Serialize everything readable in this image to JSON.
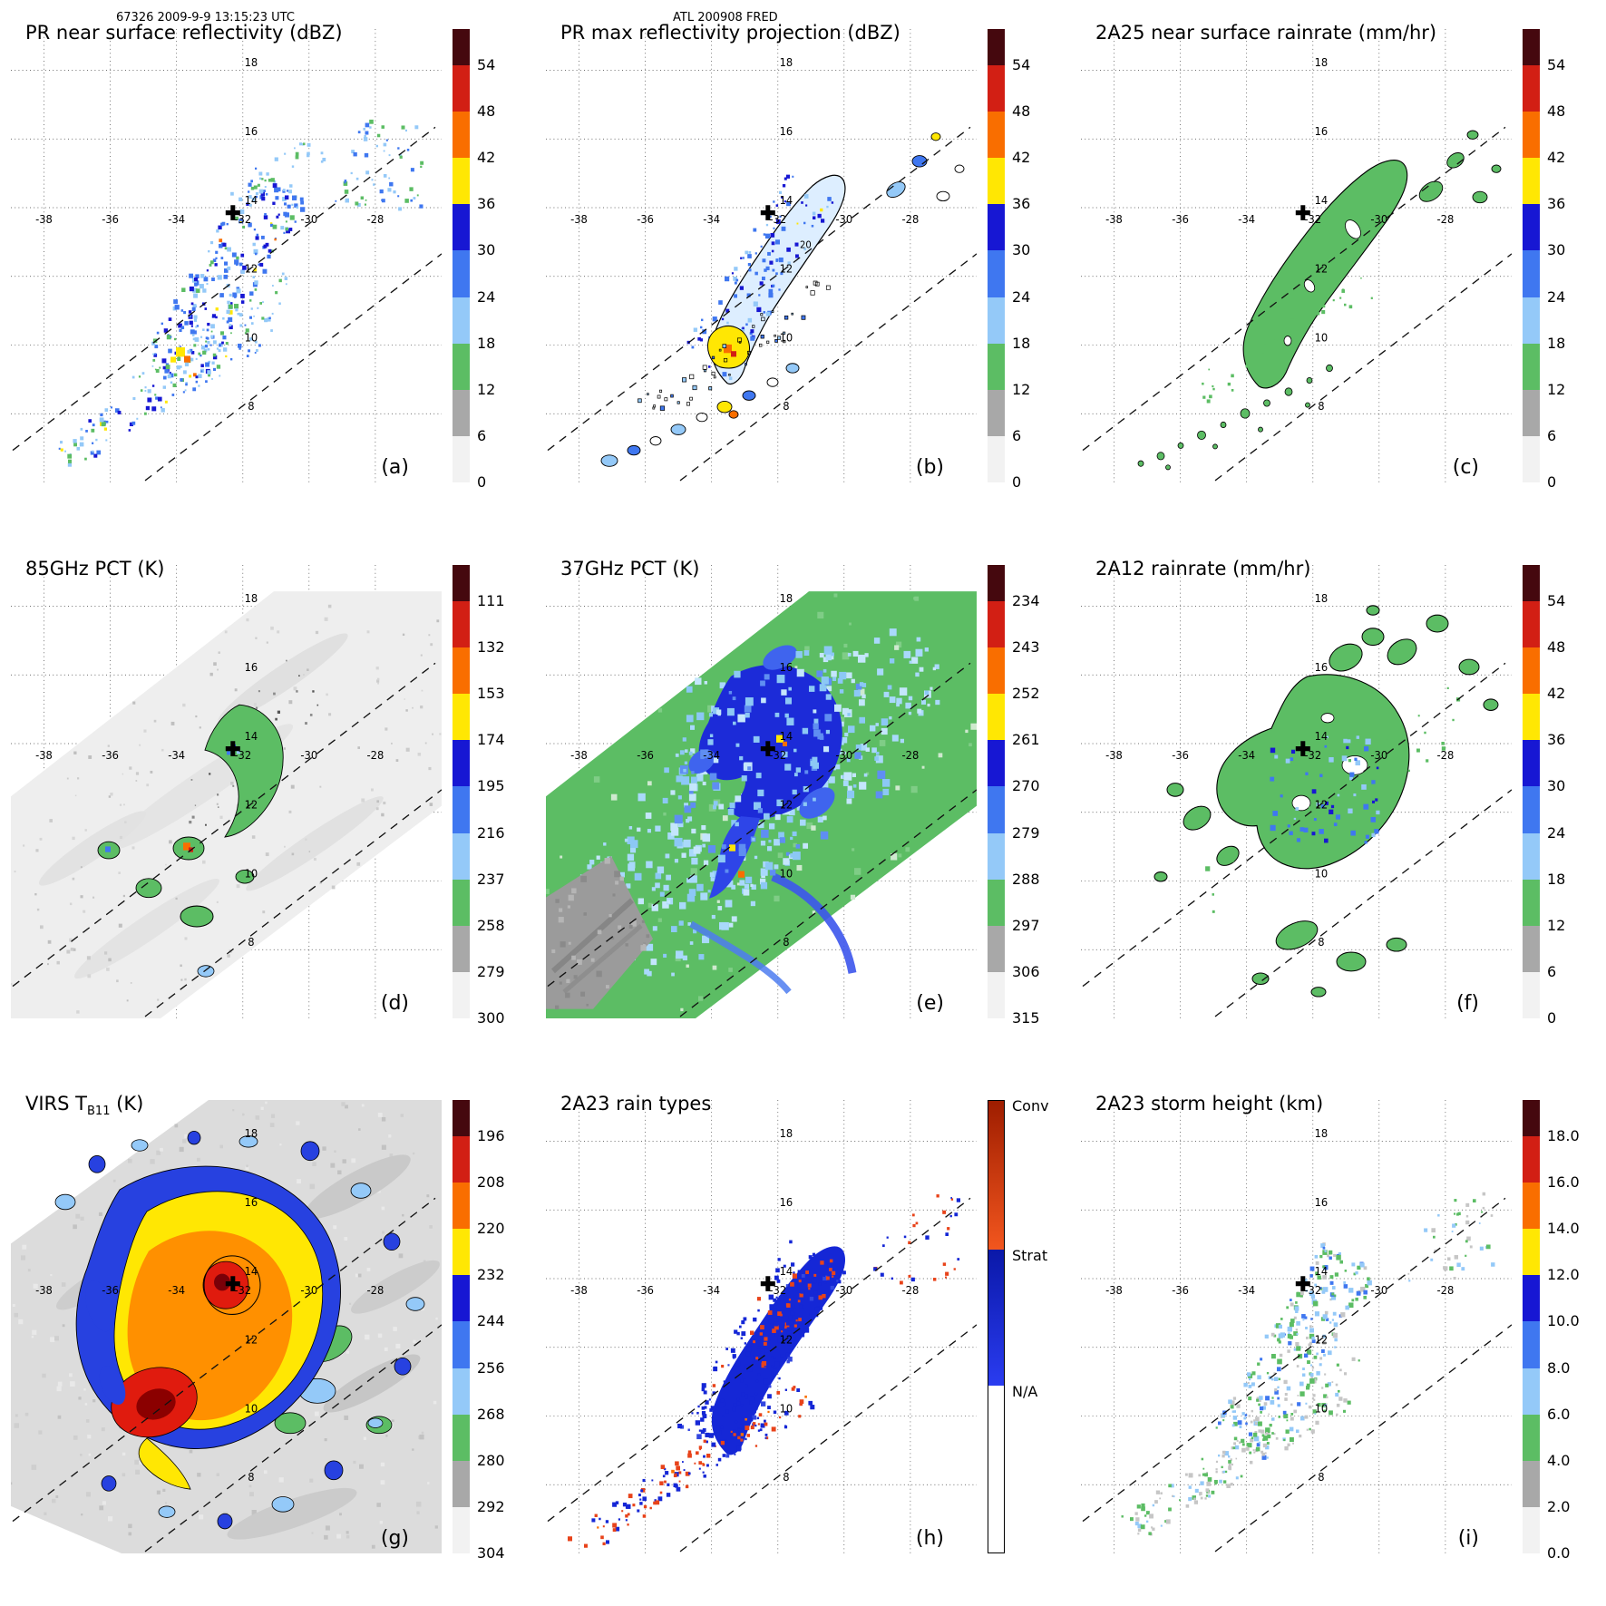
{
  "header": {
    "left": "67326 2009-9-9 13:15:23 UTC",
    "center": "ATL 200908 FRED"
  },
  "axes": {
    "lon_ticks": [
      "-38",
      "-36",
      "-34",
      "-32",
      "-30",
      "-28"
    ],
    "lat_ticks": [
      "8",
      "10",
      "12",
      "14",
      "16",
      "18"
    ],
    "lon_range": [
      -39,
      -26
    ],
    "lat_range": [
      6,
      19.2
    ],
    "lat_label_lon": -31.75,
    "lon_label_lat": 13.55,
    "storm_center": {
      "lon": -32.3,
      "lat": 13.85
    }
  },
  "palettes": {
    "value_bar": [
      "#45080e",
      "#d21f14",
      "#f96e00",
      "#ffe703",
      "#1717d3",
      "#3f77f0",
      "#94c9f8",
      "#5cbd64",
      "#a8a8a8",
      "#f2f2f2"
    ]
  },
  "chart_data": {
    "type": "heatmap",
    "description": "3x3 multi-sensor TRMM overpass maps of tropical cyclone FRED (ATL 200908), orbit 67326 at 2009-9-9 13:15:23 UTC. Each panel: lon -38 to -28, lat 8 to 18, dotted 2-degree graticule, dashed PR swath edge lines, bold plus at storm center near (-32.3, 13.9).",
    "panels": [
      {
        "letter": "(a)",
        "title": "PR near surface reflectivity (dBZ)",
        "units": "dBZ",
        "colorbar": {
          "type": "ticks",
          "ticks": [
            "54",
            "48",
            "42",
            "36",
            "30",
            "24",
            "18",
            "12",
            "6",
            "0"
          ]
        }
      },
      {
        "letter": "(b)",
        "title": "PR max reflectivity projection (dBZ)",
        "units": "dBZ",
        "contour_label": "20",
        "colorbar": {
          "type": "ticks",
          "ticks": [
            "54",
            "48",
            "42",
            "36",
            "30",
            "24",
            "18",
            "12",
            "6",
            "0"
          ]
        }
      },
      {
        "letter": "(c)",
        "title": "2A25 near surface rainrate (mm/hr)",
        "units": "mm/hr",
        "colorbar": {
          "type": "ticks",
          "ticks": [
            "54",
            "48",
            "42",
            "36",
            "30",
            "24",
            "18",
            "12",
            "6",
            "0"
          ]
        }
      },
      {
        "letter": "(d)",
        "title": "85GHz PCT (K)",
        "units": "K",
        "colorbar": {
          "type": "ticks",
          "ticks": [
            "111",
            "132",
            "153",
            "174",
            "195",
            "216",
            "237",
            "258",
            "279",
            "300"
          ]
        }
      },
      {
        "letter": "(e)",
        "title": "37GHz PCT (K)",
        "units": "K",
        "colorbar": {
          "type": "ticks",
          "ticks": [
            "234",
            "243",
            "252",
            "261",
            "270",
            "279",
            "288",
            "297",
            "306",
            "315"
          ]
        }
      },
      {
        "letter": "(f)",
        "title": "2A12 rainrate (mm/hr)",
        "units": "mm/hr",
        "colorbar": {
          "type": "ticks",
          "ticks": [
            "54",
            "48",
            "42",
            "36",
            "30",
            "24",
            "18",
            "12",
            "6",
            "0"
          ]
        }
      },
      {
        "letter": "(g)",
        "title_main": "VIRS T",
        "title_sub": "B11",
        "title_end": " (K)",
        "units": "K",
        "colorbar": {
          "type": "ticks",
          "ticks": [
            "196",
            "208",
            "220",
            "232",
            "244",
            "256",
            "268",
            "280",
            "292",
            "304"
          ]
        }
      },
      {
        "letter": "(h)",
        "title": "2A23 rain types",
        "colorbar": {
          "type": "segments",
          "segments": [
            {
              "label": "Conv",
              "color": "#9e1d00",
              "color2": "#f2561e",
              "from": 0,
              "to": 0.33
            },
            {
              "label": "Strat",
              "color": "#0a18a8",
              "color2": "#2a3cf0",
              "from": 0.33,
              "to": 0.63
            },
            {
              "label": "N/A",
              "color": "#ffffff",
              "from": 0.63,
              "to": 1
            }
          ]
        }
      },
      {
        "letter": "(i)",
        "title": "2A23 storm height (km)",
        "units": "km",
        "colorbar": {
          "type": "ticks",
          "ticks": [
            "18.0",
            "16.0",
            "14.0",
            "12.0",
            "10.0",
            "8.0",
            "6.0",
            "4.0",
            "2.0",
            "0.0"
          ]
        }
      }
    ]
  }
}
